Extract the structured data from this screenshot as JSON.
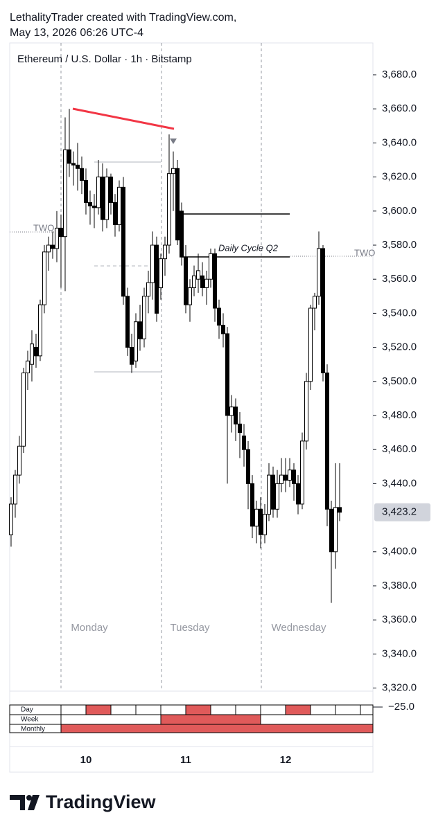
{
  "header": {
    "line1": "LethalityTrader created with TradingView.com,",
    "line2": "May 13, 2026 06:26 UTC-4"
  },
  "chart_data": {
    "type": "candlestick",
    "title": "Ethereum / U.S. Dollar · 1h · Bitstamp",
    "x": [
      0,
      1,
      2,
      3,
      4,
      5,
      6,
      7,
      8,
      9,
      10,
      11,
      12,
      13,
      14,
      15,
      16,
      17,
      18,
      19,
      20,
      21,
      22,
      23,
      24,
      25,
      26,
      27,
      28,
      29,
      30,
      31,
      32,
      33,
      34,
      35,
      36,
      37,
      38,
      39,
      40,
      41,
      42,
      43,
      44,
      45,
      46,
      47,
      48,
      49,
      50,
      51,
      52,
      53,
      54,
      55,
      56,
      57,
      58,
      59,
      60,
      61,
      62,
      63,
      64,
      65,
      66,
      67,
      68,
      69,
      70,
      71,
      72,
      73,
      74,
      75,
      76,
      77,
      78,
      79
    ],
    "open": [
      3410,
      3428,
      3445,
      3462,
      3505,
      3510,
      3520,
      3515,
      3545,
      3576,
      3580,
      3578,
      3590,
      3585,
      3636,
      3628,
      3627,
      3625,
      3618,
      3605,
      3603,
      3602,
      3620,
      3595,
      3620,
      3605,
      3592,
      3614,
      3550,
      3520,
      3512,
      3535,
      3525,
      3550,
      3558,
      3580,
      3555,
      3572,
      3580,
      3622,
      3625,
      3600,
      3573,
      3545,
      3555,
      3560,
      3562,
      3555,
      3560,
      3575,
      3543,
      3533,
      3528,
      3480,
      3485,
      3475,
      3468,
      3460,
      3440,
      3415,
      3425,
      3410,
      3422,
      3445,
      3425,
      3440,
      3445,
      3442,
      3448,
      3440,
      3428,
      3465,
      3500,
      3543,
      3550,
      3578,
      3505,
      3425,
      3400,
      3426
    ],
    "high": [
      3432,
      3448,
      3468,
      3508,
      3518,
      3530,
      3528,
      3548,
      3580,
      3585,
      3588,
      3600,
      3598,
      3655,
      3660,
      3635,
      3640,
      3632,
      3625,
      3612,
      3610,
      3630,
      3628,
      3625,
      3622,
      3610,
      3618,
      3620,
      3555,
      3528,
      3540,
      3545,
      3555,
      3565,
      3588,
      3585,
      3575,
      3585,
      3645,
      3635,
      3630,
      3605,
      3580,
      3560,
      3568,
      3575,
      3570,
      3565,
      3578,
      3578,
      3548,
      3540,
      3532,
      3492,
      3490,
      3482,
      3475,
      3465,
      3445,
      3430,
      3432,
      3428,
      3452,
      3450,
      3448,
      3455,
      3455,
      3455,
      3452,
      3445,
      3470,
      3505,
      3545,
      3552,
      3588,
      3580,
      3510,
      3430,
      3452,
      3452
    ],
    "low": [
      3403,
      3420,
      3440,
      3458,
      3495,
      3500,
      3508,
      3512,
      3540,
      3565,
      3572,
      3570,
      3555,
      3553,
      3620,
      3615,
      3612,
      3610,
      3598,
      3592,
      3590,
      3598,
      3588,
      3590,
      3598,
      3585,
      3588,
      3545,
      3515,
      3505,
      3508,
      3518,
      3520,
      3540,
      3548,
      3535,
      3548,
      3562,
      3575,
      3600,
      3580,
      3568,
      3540,
      3535,
      3550,
      3552,
      3550,
      3545,
      3555,
      3535,
      3525,
      3520,
      3440,
      3470,
      3465,
      3455,
      3450,
      3425,
      3408,
      3405,
      3402,
      3405,
      3418,
      3420,
      3420,
      3435,
      3435,
      3438,
      3430,
      3422,
      3425,
      3460,
      3495,
      3530,
      3545,
      3500,
      3415,
      3370,
      3390,
      3418
    ],
    "close": [
      3428,
      3445,
      3462,
      3505,
      3512,
      3522,
      3515,
      3545,
      3576,
      3580,
      3578,
      3590,
      3585,
      3636,
      3628,
      3627,
      3625,
      3618,
      3605,
      3603,
      3602,
      3620,
      3595,
      3620,
      3605,
      3592,
      3614,
      3550,
      3520,
      3510,
      3535,
      3525,
      3550,
      3558,
      3580,
      3540,
      3572,
      3580,
      3622,
      3625,
      3583,
      3573,
      3545,
      3555,
      3562,
      3565,
      3555,
      3560,
      3575,
      3543,
      3533,
      3528,
      3480,
      3485,
      3475,
      3470,
      3460,
      3440,
      3415,
      3425,
      3410,
      3422,
      3445,
      3425,
      3440,
      3445,
      3442,
      3448,
      3440,
      3428,
      3465,
      3500,
      3543,
      3550,
      3578,
      3505,
      3425,
      3400,
      3426,
      3423.2
    ],
    "up_color": "#ffffff",
    "down_color": "#000000",
    "edge_color": "#000000",
    "last_price": {
      "value": 3423.2,
      "label": "3,423.2"
    },
    "ylim": [
      3318.2,
      3698.7
    ],
    "yticks": [
      {
        "value": 3680,
        "label": "3,680.0"
      },
      {
        "value": 3660,
        "label": "3,660.0"
      },
      {
        "value": 3640,
        "label": "3,640.0"
      },
      {
        "value": 3620,
        "label": "3,620.0"
      },
      {
        "value": 3600,
        "label": "3,600.0"
      },
      {
        "value": 3580,
        "label": "3,580.0"
      },
      {
        "value": 3560,
        "label": "3,560.0"
      },
      {
        "value": 3540,
        "label": "3,540.0"
      },
      {
        "value": 3520,
        "label": "3,520.0"
      },
      {
        "value": 3500,
        "label": "3,500.0"
      },
      {
        "value": 3480,
        "label": "3,480.0"
      },
      {
        "value": 3460,
        "label": "3,460.0"
      },
      {
        "value": 3440,
        "label": "3,440.0"
      },
      {
        "value": 3400,
        "label": "3,400.0"
      },
      {
        "value": 3380,
        "label": "3,380.0"
      },
      {
        "value": 3360,
        "label": "3,360.0"
      },
      {
        "value": 3340,
        "label": "3,340.0"
      },
      {
        "value": 3320,
        "label": "3,320.0"
      }
    ],
    "xlim": [
      -0.33,
      87
    ],
    "xticks": [
      {
        "value": 18,
        "label": "10"
      },
      {
        "value": 42,
        "label": "11"
      },
      {
        "value": 66,
        "label": "12"
      }
    ],
    "day_labels": [
      "Monday",
      "Tuesday",
      "Wednesday"
    ],
    "annotations": {
      "two_left": "TWO",
      "two_right": "TWO",
      "daily_cycle": "Daily Cycle Q2"
    },
    "indicator": {
      "rows": [
        "Day",
        "Week",
        "Monthly"
      ],
      "axis_label": "−25.0"
    }
  },
  "footer": {
    "logo": "TradingView"
  }
}
